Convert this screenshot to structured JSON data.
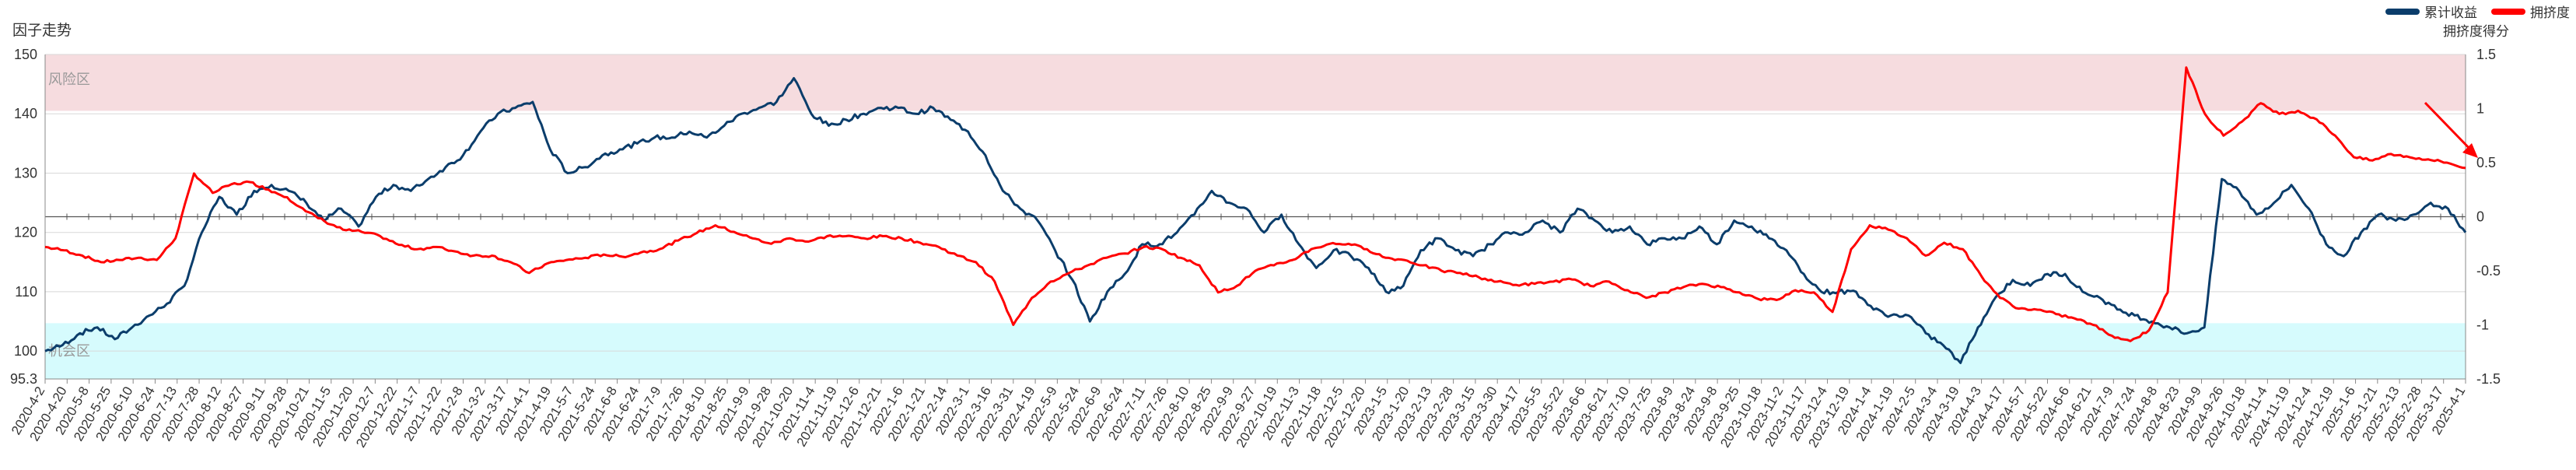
{
  "title": "因子走势",
  "legend": [
    {
      "name": "累计收益",
      "color": "#0b3d6b"
    },
    {
      "name": "拥挤度",
      "color": "#ff0000"
    }
  ],
  "right_axis_title": "拥挤度得分",
  "zones": {
    "risk": {
      "label": "风险区",
      "color": "#f6dcdf"
    },
    "opportunity": {
      "label": "机会区",
      "color": "#d6fbfd"
    }
  },
  "chart_data": {
    "type": "line",
    "title": "因子走势",
    "left_axis": {
      "min": 95.3,
      "max": 150,
      "ticks": [
        95.3,
        100,
        110,
        120,
        130,
        140,
        150
      ]
    },
    "right_axis": {
      "label": "拥挤度得分",
      "min": -1.5,
      "max": 1.5,
      "ticks": [
        1.5,
        1,
        0.5,
        0,
        -0.5,
        -1,
        -1.5
      ]
    },
    "x_ticks": [
      "2020-4-2",
      "2020-4-20",
      "2020-5-8",
      "2020-5-25",
      "2020-6-10",
      "2020-6-24",
      "2020-7-13",
      "2020-7-28",
      "2020-8-12",
      "2020-8-27",
      "2020-9-11",
      "2020-9-28",
      "2020-10-21",
      "2020-11-5",
      "2020-11-20",
      "2020-12-7",
      "2020-12-22",
      "2021-1-7",
      "2021-1-22",
      "2021-2-8",
      "2021-3-2",
      "2021-3-17",
      "2021-4-1",
      "2021-4-19",
      "2021-5-7",
      "2021-5-24",
      "2021-6-8",
      "2021-6-24",
      "2021-7-9",
      "2021-7-26",
      "2021-8-10",
      "2021-8-25",
      "2021-9-9",
      "2021-9-28",
      "2021-10-20",
      "2021-11-4",
      "2021-11-19",
      "2021-12-6",
      "2021-12-21",
      "2022-1-6",
      "2022-1-21",
      "2022-2-14",
      "2022-3-1",
      "2022-3-16",
      "2022-3-31",
      "2022-4-19",
      "2022-5-9",
      "2022-5-24",
      "2022-6-9",
      "2022-6-24",
      "2022-7-11",
      "2022-7-26",
      "2022-8-10",
      "2022-8-25",
      "2022-9-9",
      "2022-9-27",
      "2022-10-19",
      "2022-11-3",
      "2022-11-18",
      "2022-12-5",
      "2022-12-20",
      "2023-1-5",
      "2023-1-20",
      "2023-2-13",
      "2023-2-28",
      "2023-3-15",
      "2023-3-30",
      "2023-4-17",
      "2023-5-5",
      "2023-5-22",
      "2023-6-6",
      "2023-6-21",
      "2023-7-10",
      "2023-7-25",
      "2023-8-9",
      "2023-8-24",
      "2023-9-8",
      "2023-9-25",
      "2023-10-18",
      "2023-11-2",
      "2023-11-17",
      "2023-12-4",
      "2023-12-19",
      "2024-1-4",
      "2024-1-19",
      "2024-2-5",
      "2024-3-4",
      "2024-3-19",
      "2024-4-3",
      "2024-4-17",
      "2024-5-7",
      "2024-5-22",
      "2024-6-6",
      "2024-6-21",
      "2024-7-9",
      "2024-7-24",
      "2024-8-8",
      "2024-8-23",
      "2024-9-9",
      "2024-9-26",
      "2024-10-18",
      "2024-11-4",
      "2024-11-19",
      "2024-12-4",
      "2024-12-19",
      "2025-1-6",
      "2025-1-21",
      "2025-2-13",
      "2025-2-28",
      "2025-3-17",
      "2025-4-1"
    ],
    "series": [
      {
        "name": "累计收益",
        "axis": "left",
        "color": "#0b3d6b",
        "values": [
          100,
          101,
          103,
          104,
          102,
          104,
          106,
          108,
          111,
          120,
          126,
          123,
          127,
          128,
          127,
          125,
          122,
          124,
          121,
          126,
          128,
          127,
          129,
          131,
          133,
          137,
          140,
          141,
          142,
          134,
          130,
          131,
          133,
          134,
          135,
          136,
          136,
          137,
          136,
          138,
          140,
          141,
          142,
          146,
          140,
          138,
          139,
          140,
          141,
          141,
          140,
          141,
          139,
          137,
          133,
          127,
          124,
          122,
          117,
          112,
          105,
          110,
          113,
          118,
          118,
          120,
          123,
          127,
          125,
          124,
          120,
          123,
          118,
          114,
          117,
          116,
          114,
          110,
          111,
          117,
          119,
          117,
          116,
          118,
          120,
          120,
          122,
          120,
          124,
          122,
          120,
          121,
          118,
          119,
          119,
          121,
          118,
          122,
          121,
          119,
          117,
          113,
          110,
          110,
          110,
          107,
          106,
          106,
          103,
          101,
          98,
          104,
          109,
          112,
          111,
          113,
          113,
          110,
          109,
          107,
          106,
          105,
          104,
          103,
          104,
          129,
          127,
          123,
          125,
          128,
          124,
          118,
          116,
          120,
          123,
          122,
          123,
          125,
          124,
          120
        ]
      },
      {
        "name": "拥挤度",
        "axis": "right",
        "color": "#ff0000",
        "values": [
          -0.28,
          -0.31,
          -0.36,
          -0.42,
          -0.4,
          -0.38,
          -0.4,
          -0.2,
          0.4,
          0.22,
          0.3,
          0.32,
          0.25,
          0.18,
          0.05,
          -0.04,
          -0.12,
          -0.14,
          -0.18,
          -0.26,
          -0.3,
          -0.28,
          -0.32,
          -0.36,
          -0.36,
          -0.42,
          -0.52,
          -0.43,
          -0.4,
          -0.38,
          -0.35,
          -0.37,
          -0.33,
          -0.3,
          -0.22,
          -0.15,
          -0.08,
          -0.14,
          -0.2,
          -0.25,
          -0.2,
          -0.23,
          -0.18,
          -0.18,
          -0.2,
          -0.18,
          -0.2,
          -0.24,
          -0.28,
          -0.36,
          -0.42,
          -0.6,
          -1.0,
          -0.75,
          -0.6,
          -0.52,
          -0.45,
          -0.38,
          -0.34,
          -0.28,
          -0.3,
          -0.38,
          -0.45,
          -0.7,
          -0.64,
          -0.5,
          -0.45,
          -0.4,
          -0.3,
          -0.25,
          -0.25,
          -0.3,
          -0.38,
          -0.4,
          -0.45,
          -0.5,
          -0.52,
          -0.56,
          -0.6,
          -0.63,
          -0.62,
          -0.6,
          -0.58,
          -0.64,
          -0.6,
          -0.68,
          -0.75,
          -0.7,
          -0.65,
          -0.62,
          -0.65,
          -0.7,
          -0.76,
          -0.77,
          -0.68,
          -0.7,
          -0.88,
          -0.3,
          -0.08,
          -0.12,
          -0.2,
          -0.36,
          -0.24,
          -0.3,
          -0.55,
          -0.75,
          -0.85,
          -0.86,
          -0.9,
          -0.94,
          -1.0,
          -1.1,
          -1.15,
          -1.05,
          -0.7,
          1.38,
          0.95,
          0.75,
          0.88,
          1.05,
          0.95,
          0.98,
          0.9,
          0.75,
          0.55,
          0.52,
          0.58,
          0.55,
          0.53,
          0.5,
          0.45
        ]
      }
    ],
    "annotations": [
      {
        "type": "arrow",
        "color": "#ff0000",
        "position": "top-right"
      }
    ],
    "legend_position": "top-right",
    "grid": true
  }
}
